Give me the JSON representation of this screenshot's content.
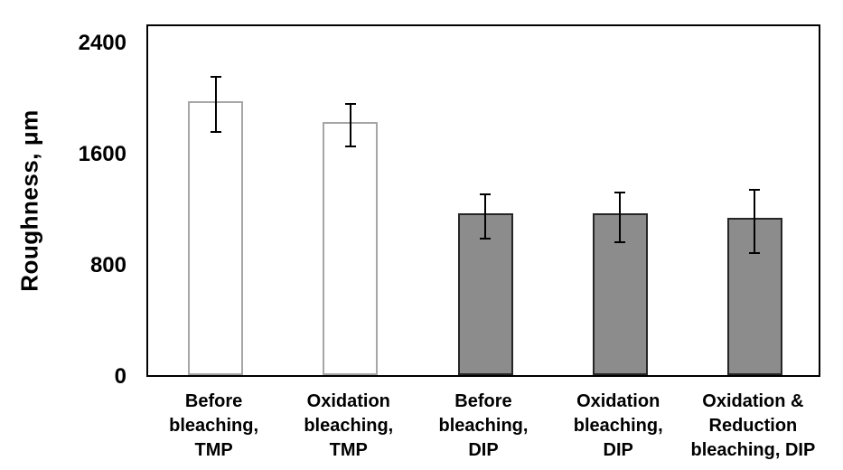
{
  "chart_data": {
    "type": "bar",
    "title": "",
    "ylabel": "Roughness, μm",
    "xlabel": "",
    "yticks": [
      0,
      800,
      1600,
      2400
    ],
    "ylim": [
      0,
      2400
    ],
    "grid": false,
    "legend": false,
    "categories": [
      "Before bleaching, TMP",
      "Oxidation bleaching, TMP",
      "Before bleaching, DIP",
      "Oxidation bleaching, DIP",
      "Oxidation & Reduction bleaching, DIP"
    ],
    "category_label_lines": [
      [
        "Before",
        "bleaching,",
        "TMP"
      ],
      [
        "Oxidation",
        "bleaching,",
        "TMP"
      ],
      [
        "Before",
        "bleaching,",
        "DIP"
      ],
      [
        "Oxidation",
        "bleaching,",
        "DIP"
      ],
      [
        "Oxidation &",
        "Reduction",
        "bleaching, DIP"
      ]
    ],
    "values": [
      1970,
      1820,
      1165,
      1160,
      1130
    ],
    "errors": [
      205,
      160,
      165,
      185,
      235
    ],
    "bar_groups": [
      "TMP",
      "TMP",
      "DIP",
      "DIP",
      "DIP"
    ],
    "colors": {
      "tmp_fill": "#ffffff",
      "tmp_border": "#a6a6a6",
      "dip_fill": "#8c8c8c",
      "dip_border": "#262626",
      "axis": "#000000",
      "error_bar": "#000000",
      "text": "#000000",
      "background": "#ffffff"
    }
  }
}
